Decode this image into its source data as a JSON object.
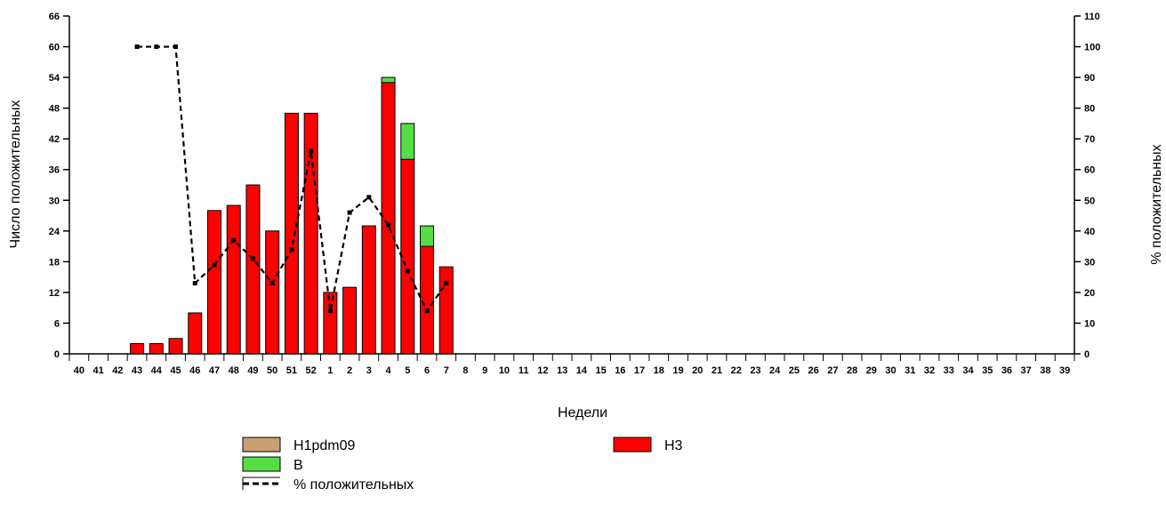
{
  "chart_data": {
    "type": "bar",
    "title": "",
    "xlabel": "Недели",
    "ylabel": "Число положительных",
    "y2label": "% положительных",
    "ylim": [
      0,
      66
    ],
    "y2lim": [
      0,
      110
    ],
    "yticks": [
      0,
      6,
      12,
      18,
      24,
      30,
      36,
      42,
      48,
      54,
      60,
      66
    ],
    "y2ticks": [
      0,
      10,
      20,
      30,
      40,
      50,
      60,
      70,
      80,
      90,
      100,
      110
    ],
    "categories": [
      "40",
      "41",
      "42",
      "43",
      "44",
      "45",
      "46",
      "47",
      "48",
      "49",
      "50",
      "51",
      "52",
      "1",
      "2",
      "3",
      "4",
      "5",
      "6",
      "7",
      "8",
      "9",
      "10",
      "11",
      "12",
      "13",
      "14",
      "15",
      "16",
      "17",
      "18",
      "19",
      "20",
      "21",
      "22",
      "23",
      "24",
      "25",
      "26",
      "27",
      "28",
      "29",
      "30",
      "31",
      "32",
      "33",
      "34",
      "35",
      "36",
      "37",
      "38",
      "39"
    ],
    "series": [
      {
        "name": "H1pdm09",
        "type": "stacked-bar",
        "color": "#c8a072",
        "values": [
          0,
          0,
          0,
          0,
          0,
          0,
          0,
          0,
          0,
          0,
          0,
          0,
          0,
          0,
          0,
          0,
          0,
          0,
          0,
          0,
          0,
          0,
          0,
          0,
          0,
          0,
          0,
          0,
          0,
          0,
          0,
          0,
          0,
          0,
          0,
          0,
          0,
          0,
          0,
          0,
          0,
          0,
          0,
          0,
          0,
          0,
          0,
          0,
          0,
          0,
          0,
          0
        ]
      },
      {
        "name": "H3",
        "type": "stacked-bar",
        "color": "#ff0000",
        "values": [
          0,
          0,
          0,
          2,
          2,
          3,
          8,
          28,
          29,
          33,
          24,
          47,
          47,
          12,
          13,
          25,
          53,
          38,
          21,
          17,
          0,
          0,
          0,
          0,
          0,
          0,
          0,
          0,
          0,
          0,
          0,
          0,
          0,
          0,
          0,
          0,
          0,
          0,
          0,
          0,
          0,
          0,
          0,
          0,
          0,
          0,
          0,
          0,
          0,
          0,
          0,
          0
        ]
      },
      {
        "name": "B",
        "type": "stacked-bar",
        "color": "#55dd44",
        "values": [
          0,
          0,
          0,
          0,
          0,
          0,
          0,
          0,
          0,
          0,
          0,
          0,
          0,
          0,
          0,
          0,
          1,
          7,
          4,
          0,
          0,
          0,
          0,
          0,
          0,
          0,
          0,
          0,
          0,
          0,
          0,
          0,
          0,
          0,
          0,
          0,
          0,
          0,
          0,
          0,
          0,
          0,
          0,
          0,
          0,
          0,
          0,
          0,
          0,
          0,
          0,
          0
        ]
      },
      {
        "name": "% положительных",
        "type": "line",
        "axis": "right",
        "color": "#000000",
        "style": "dashed",
        "values": [
          null,
          null,
          null,
          100,
          100,
          100,
          23,
          29,
          37,
          31,
          23,
          34,
          66,
          14,
          46,
          51,
          42,
          27,
          14,
          23,
          null,
          null,
          null,
          null,
          null,
          null,
          null,
          null,
          null,
          null,
          null,
          null,
          null,
          null,
          null,
          null,
          null,
          null,
          null,
          null,
          null,
          null,
          null,
          null,
          null,
          null,
          null,
          null,
          null,
          null,
          null,
          null
        ]
      }
    ],
    "legend": {
      "placement": "bottom",
      "items": [
        {
          "label": "H1pdm09",
          "color": "#c8a072",
          "kind": "box"
        },
        {
          "label": "H3",
          "color": "#ff0000",
          "kind": "box"
        },
        {
          "label": "B",
          "color": "#55dd44",
          "kind": "box"
        },
        {
          "label": "% положительных",
          "color": "#000000",
          "kind": "dashed-line"
        }
      ]
    },
    "grid": false
  }
}
